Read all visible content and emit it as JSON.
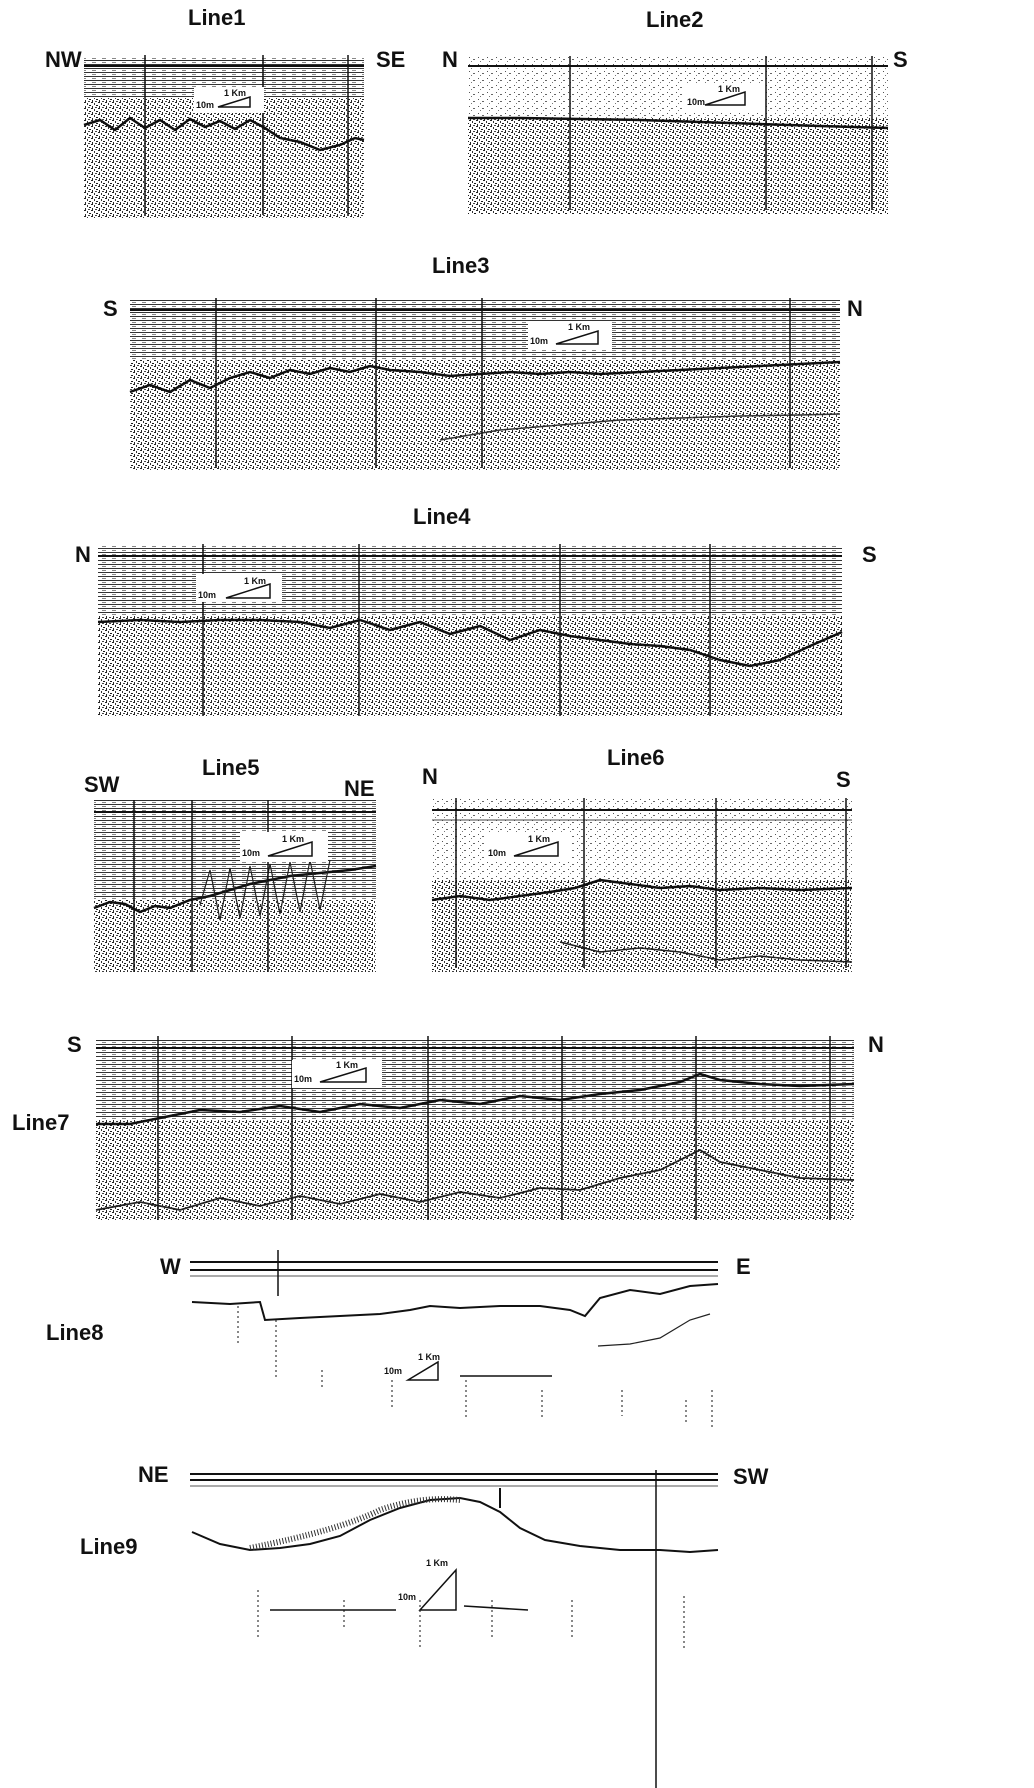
{
  "figure": {
    "scale_bar_label": "1 Km",
    "vertical_scale_label": "10m",
    "panels": [
      {
        "title": "Line1",
        "left_dir": "NW",
        "right_dir": "SE",
        "style": "dense"
      },
      {
        "title": "Line2",
        "left_dir": "N",
        "right_dir": "S",
        "style": "dense"
      },
      {
        "title": "Line3",
        "left_dir": "S",
        "right_dir": "N",
        "style": "dense"
      },
      {
        "title": "Line4",
        "left_dir": "N",
        "right_dir": "S",
        "style": "dense"
      },
      {
        "title": "Line5",
        "left_dir": "SW",
        "right_dir": "NE",
        "style": "dense"
      },
      {
        "title": "Line6",
        "left_dir": "N",
        "right_dir": "S",
        "style": "dense"
      },
      {
        "title": "Line7",
        "left_dir": "S",
        "right_dir": "N",
        "style": "dense"
      },
      {
        "title": "Line8",
        "left_dir": "W",
        "right_dir": "E",
        "style": "sparse"
      },
      {
        "title": "Line9",
        "left_dir": "NE",
        "right_dir": "SW",
        "style": "sparse"
      }
    ],
    "colors": {
      "ink": "#111111",
      "background": "#ffffff",
      "noise": "#3a3a3a"
    }
  }
}
